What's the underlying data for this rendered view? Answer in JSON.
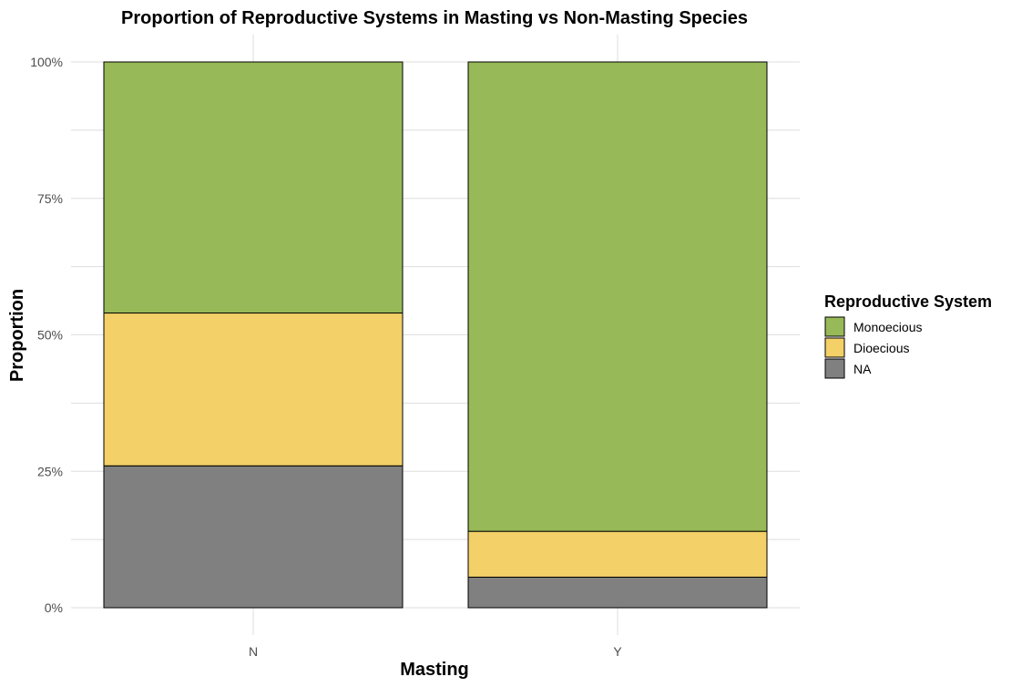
{
  "chart_data": {
    "type": "bar",
    "stacked": true,
    "title": "Proportion of Reproductive Systems in Masting vs Non-Masting Species",
    "xlabel": "Masting",
    "ylabel": "Proportion",
    "categories": [
      "N",
      "Y"
    ],
    "ylim": [
      0,
      1
    ],
    "yticks": [
      {
        "value": 0,
        "label": "0%"
      },
      {
        "value": 0.25,
        "label": "25%"
      },
      {
        "value": 0.5,
        "label": "50%"
      },
      {
        "value": 0.75,
        "label": "75%"
      },
      {
        "value": 1,
        "label": "100%"
      }
    ],
    "grid": true,
    "legend_title": "Reproductive System",
    "legend_position": "right",
    "series": [
      {
        "name": "Monoecious",
        "color": "#97b957",
        "values": [
          0.46,
          0.86
        ]
      },
      {
        "name": "Dioecious",
        "color": "#f3d068",
        "values": [
          0.28,
          0.084
        ]
      },
      {
        "name": "NA",
        "color": "#808080",
        "values": [
          0.26,
          0.056
        ]
      }
    ]
  }
}
